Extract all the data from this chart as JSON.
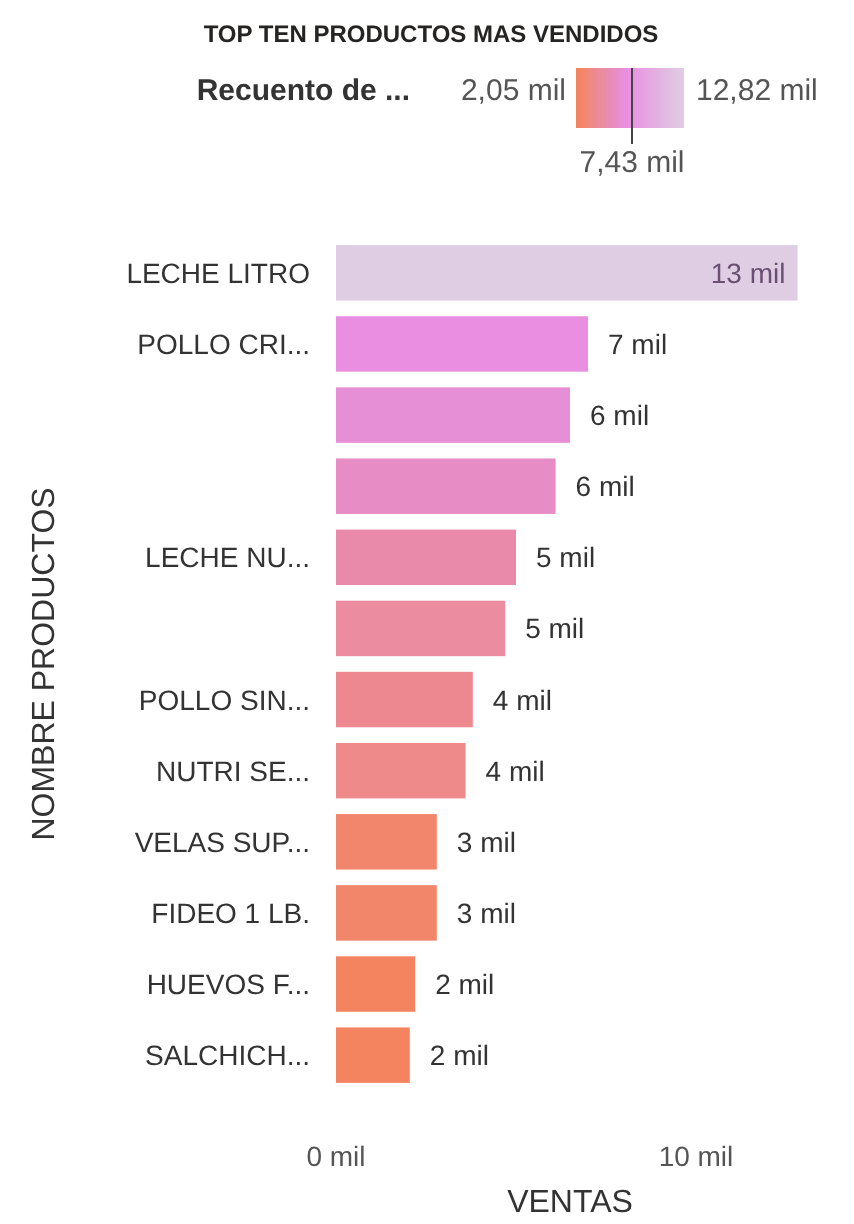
{
  "chart_data": {
    "type": "bar",
    "orientation": "horizontal",
    "title": "TOP TEN PRODUCTOS MAS VENDIDOS",
    "xlabel": "VENTAS",
    "ylabel": "NOMBRE PRODUCTOS",
    "clabel": "Recuento de ...",
    "categories": [
      "LECHE LITRO",
      "POLLO CRI...",
      null,
      null,
      "LECHE NU...",
      null,
      "POLLO SIN...",
      "NUTRI SE...",
      "VELAS SUP...",
      "FIDEO 1 LB.",
      "HUEVOS F...",
      "SALCHICH..."
    ],
    "values": [
      12.82,
      7.0,
      6.5,
      6.1,
      5.0,
      4.7,
      3.8,
      3.6,
      2.8,
      2.8,
      2.2,
      2.05
    ],
    "value_labels": [
      "13 mil",
      "7 mil",
      "6 mil",
      "6 mil",
      "5 mil",
      "5 mil",
      "4 mil",
      "4 mil",
      "3 mil",
      "3 mil",
      "2 mil",
      "2 mil"
    ],
    "colors": [
      "#dfcde3",
      "#e98ee0",
      "#e78fd6",
      "#e88cc6",
      "#ea8aaa",
      "#ec8ca0",
      "#ee8890",
      "#ef8a8a",
      "#f2866c",
      "#f2866a",
      "#f4845f",
      "#f4845f"
    ],
    "xlim": [
      0,
      13
    ],
    "xticks": [
      {
        "value": 0,
        "label": "0 mil"
      },
      {
        "value": 10,
        "label": "10 mil"
      }
    ],
    "annotations": [
      "2,05 mil",
      "12,82 mil",
      "7,43 mil"
    ]
  }
}
